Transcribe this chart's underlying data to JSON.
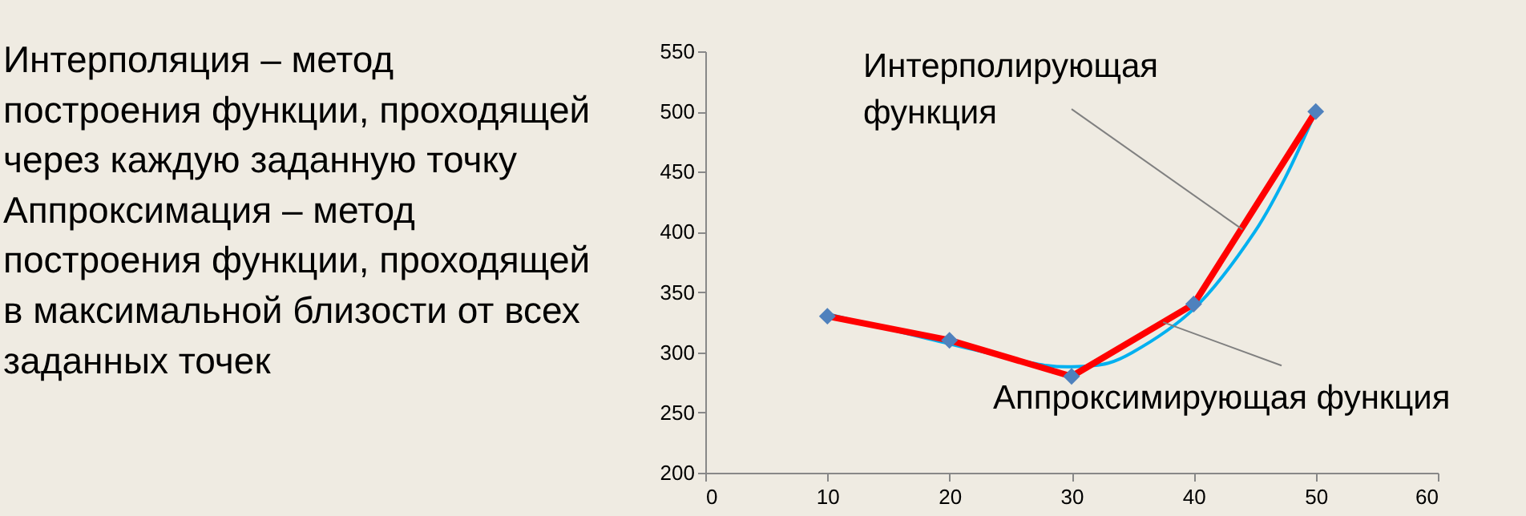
{
  "chart_data": {
    "type": "line",
    "x": [
      10,
      20,
      30,
      40,
      50
    ],
    "series": [
      {
        "type": "line",
        "color": "#00b0f0",
        "x": [
          10,
          20,
          28,
          30,
          33,
          35,
          40,
          45,
          47.5,
          50
        ],
        "values": [
          332,
          307,
          289,
          288,
          291,
          300,
          336,
          400,
          445,
          500
        ]
      },
      {
        "type": "line",
        "color": "#ff0000",
        "values": [
          330,
          310,
          280,
          340,
          500
        ],
        "marker": "none"
      },
      {
        "type": "scatter",
        "color": "#4f81bd",
        "values": [
          330,
          310,
          280,
          340,
          500
        ],
        "marker": "diamond"
      }
    ],
    "xlim": [
      0,
      60
    ],
    "xticks": [
      0,
      10,
      20,
      30,
      40,
      50,
      60
    ],
    "ylim": [
      200,
      550
    ],
    "yticks": [
      200,
      250,
      300,
      350,
      400,
      450,
      500,
      550
    ],
    "grid": false,
    "annotations": [
      "Интерполяция – метод",
      "построения функции, проходящей",
      "через каждую заданную точку",
      "Аппроксимация – метод",
      "построения функции, проходящей",
      "в максимальной близости от всех",
      "заданных точек",
      {
        "text": "Интерполирующая функция",
        "x": 44,
        "y": 402
      },
      {
        "text": "Аппроксимирующая функция",
        "x": 37.5,
        "y": 325
      }
    ]
  }
}
